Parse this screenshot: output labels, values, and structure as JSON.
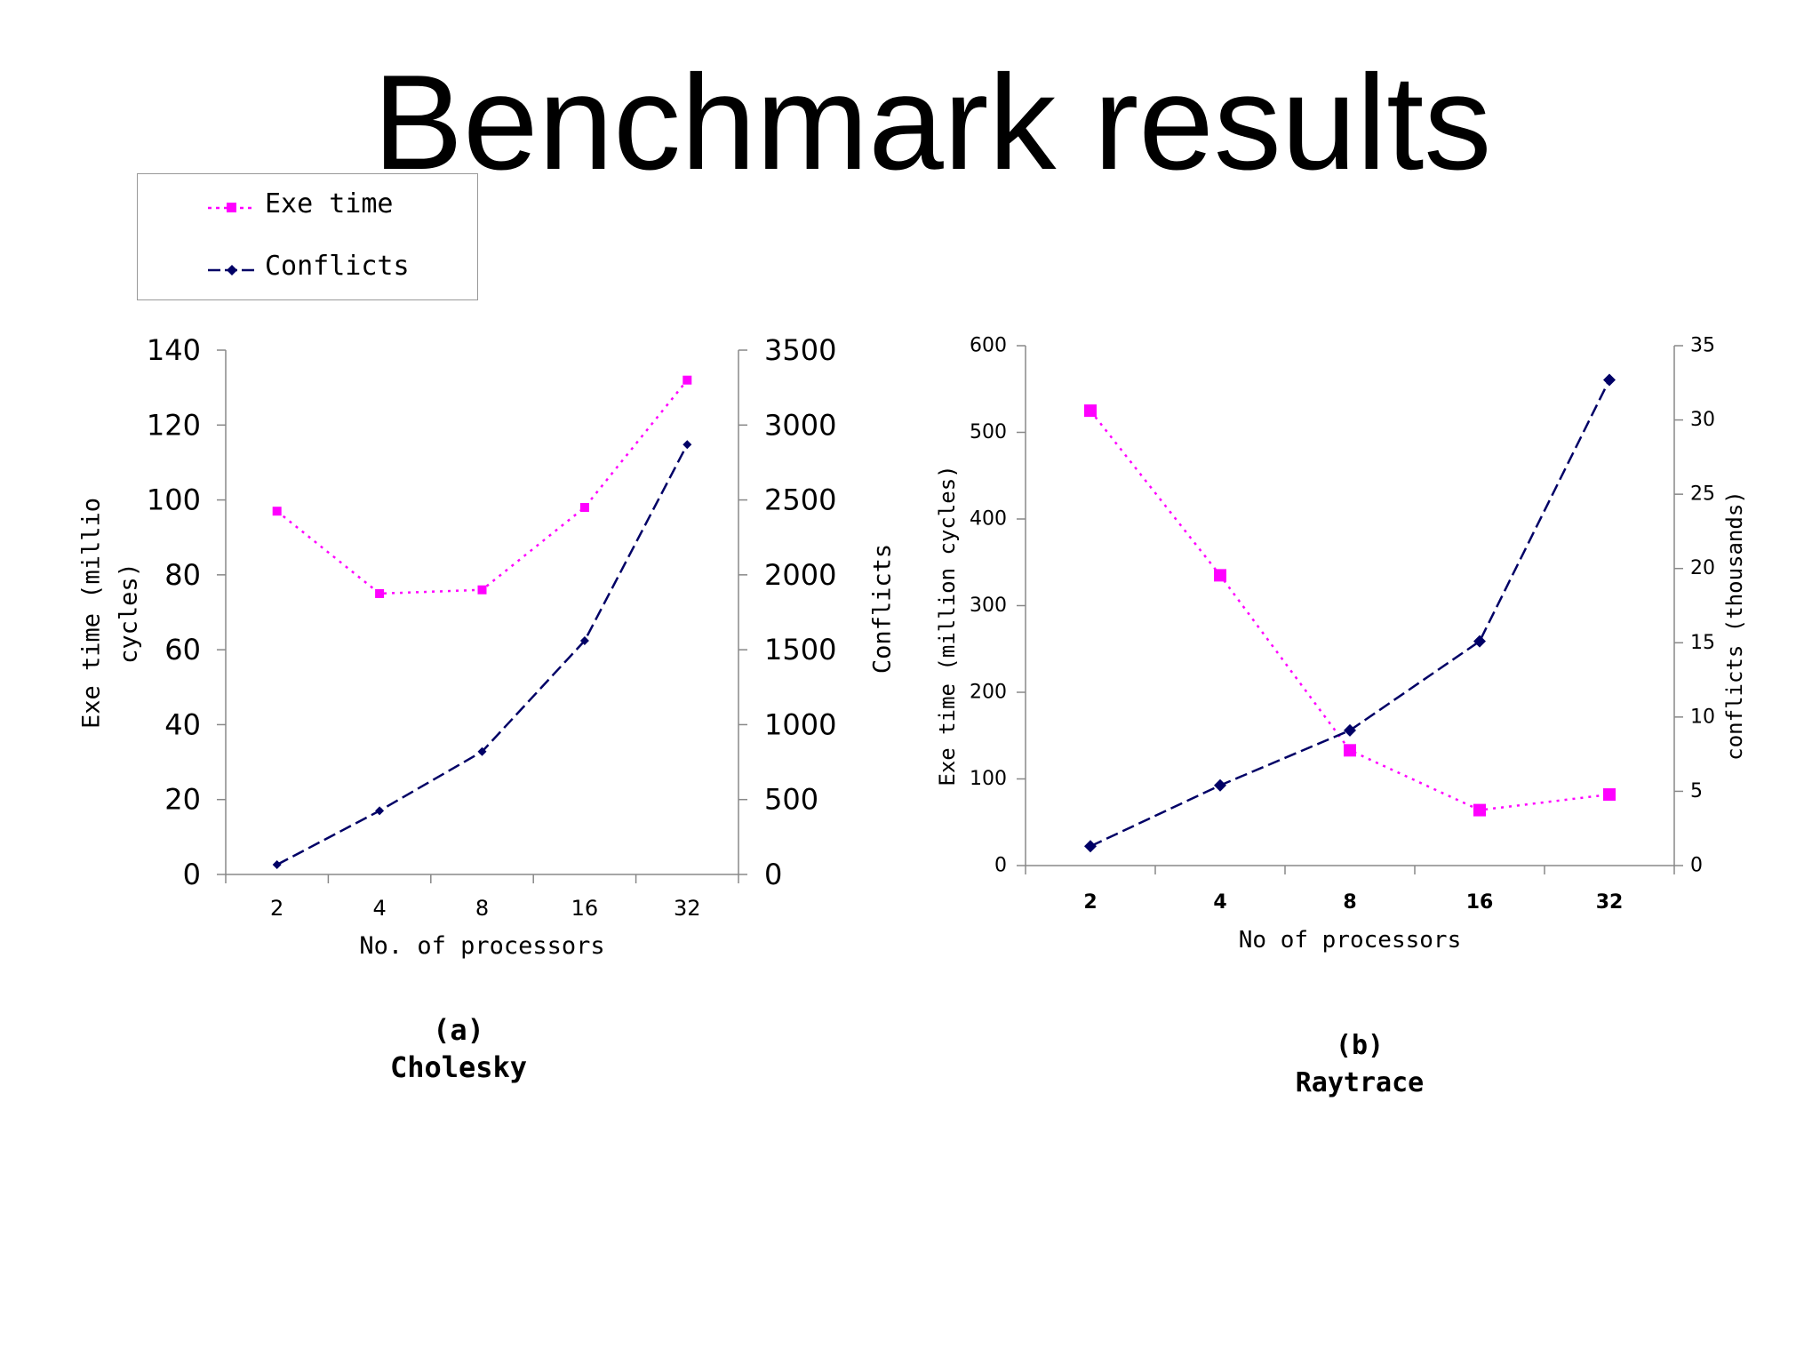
{
  "slide": {
    "title": "Benchmark results"
  },
  "legend": {
    "items": [
      {
        "label": "Exe time",
        "color": "#ff00ff",
        "marker": "square",
        "line": "dotted"
      },
      {
        "label": "Conflicts",
        "color": "#000066",
        "marker": "diamond",
        "line": "dashed"
      }
    ]
  },
  "chart_data": [
    {
      "type": "line",
      "caption": "(a)",
      "subtitle": "Cholesky",
      "xlabel": "No. of processors",
      "ylabel": "Exe time (millio cycles)",
      "ylabel_right": "Conflicts",
      "categories": [
        "2",
        "4",
        "8",
        "16",
        "32"
      ],
      "ylim": [
        0,
        140
      ],
      "yticks": [
        0,
        20,
        40,
        60,
        80,
        100,
        120,
        140
      ],
      "ylim_right": [
        0,
        3500
      ],
      "yticks_right": [
        0,
        500,
        1000,
        1500,
        2000,
        2500,
        3000,
        3500
      ],
      "grid": false,
      "series": [
        {
          "name": "Exe time",
          "axis": "left",
          "values": [
            97,
            75,
            76,
            98,
            132
          ]
        },
        {
          "name": "Conflicts",
          "axis": "right",
          "values": [
            65,
            425,
            820,
            1560,
            2870
          ]
        }
      ]
    },
    {
      "type": "line",
      "caption": "(b)",
      "subtitle": "Raytrace",
      "xlabel": "No of processors",
      "ylabel": "Exe time (million cycles)",
      "ylabel_right": "conflicts (thousands)",
      "categories": [
        "2",
        "4",
        "8",
        "16",
        "32"
      ],
      "ylim": [
        0,
        600
      ],
      "yticks": [
        0,
        100,
        200,
        300,
        400,
        500,
        600
      ],
      "ylim_right": [
        0,
        35
      ],
      "yticks_right": [
        0,
        5,
        10,
        15,
        20,
        25,
        30,
        35
      ],
      "grid": false,
      "series": [
        {
          "name": "Exe time",
          "axis": "left",
          "values": [
            525,
            335,
            133,
            64,
            82
          ]
        },
        {
          "name": "Conflicts",
          "axis": "right",
          "values": [
            1.3,
            5.4,
            9.1,
            15.1,
            32.7
          ]
        }
      ]
    }
  ]
}
